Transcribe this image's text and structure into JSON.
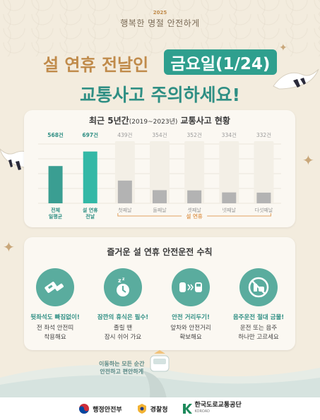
{
  "header": {
    "year": "2025",
    "slogan": "행복한 명절 안전하게",
    "title_line1_prefix": "설 연휴 전날인",
    "title_line1_highlight": "금요일(1/24)",
    "title_line2": "교통사고 주의하세요!"
  },
  "chart_section": {
    "title_main": "최근 5년간",
    "title_range": "(2019~2023년)",
    "title_suffix": " 교통사고 현황"
  },
  "chart_data": {
    "type": "bar",
    "categories": [
      "전체\n일평균",
      "설 연휴\n전날",
      "첫째날",
      "둘째날",
      "셋째날",
      "넷째날",
      "다섯째날"
    ],
    "values": [
      568,
      697,
      439,
      354,
      352,
      334,
      332
    ],
    "value_labels": [
      "568건",
      "697건",
      "439건",
      "354건",
      "352건",
      "334건",
      "332건"
    ],
    "group_label": "설 연휴",
    "colors": {
      "teal_dark": "#3a9e92",
      "teal_light": "#33b8a6",
      "grey": "#b3b3b3",
      "label_teal": "#2f8f84",
      "label_grey": "#9a9a9a",
      "group_orange": "#e0a060"
    },
    "ylim": [
      0,
      800
    ],
    "grid": true
  },
  "rules_section": {
    "title": "즐거운 설 연휴 안전운전 수칙",
    "rules": [
      {
        "icon": "seatbelt-icon",
        "heading": "뒷좌석도 빠짐없이!",
        "desc": "전 좌석 안전띠\n착용해요"
      },
      {
        "icon": "sleep-rest-icon",
        "heading": "잠깐의 휴식은 필수!",
        "desc": "졸릴 땐\n잠시 쉬어 가요"
      },
      {
        "icon": "car-distance-icon",
        "heading": "안전 거리두기!",
        "desc": "앞차와 안전거리\n확보해요"
      },
      {
        "icon": "no-drinking-icon",
        "heading": "음주운전 절대 금물!",
        "desc": "운전 또는 음주\n하나만 고르세요"
      }
    ]
  },
  "road_text": "이동하는 모든 순간\n안전하고 편안하게",
  "footer": {
    "logos": [
      {
        "name": "행정안전부",
        "icon": "taegeuk-icon"
      },
      {
        "name": "경찰청",
        "icon": "police-emblem-icon"
      },
      {
        "name": "한국도로교통공단",
        "sub": "KOROAD",
        "icon": "koroad-k-icon"
      }
    ]
  },
  "colors": {
    "teal": "#2f9f8e",
    "gold": "#c08b4b",
    "background": "#f3ecde"
  }
}
